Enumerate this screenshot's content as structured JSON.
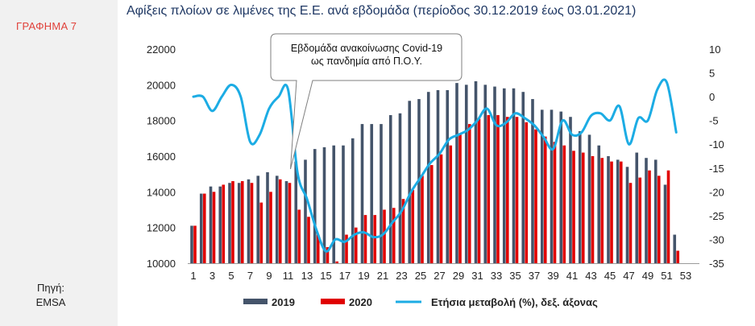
{
  "figure_label": "ΓΡΑΦΗΜΑ 7",
  "source": {
    "label": "Πηγή:",
    "value": "EMSA"
  },
  "chart_data": {
    "type": "bar",
    "title": "Αφίξεις πλοίων σε λιμένες της Ε.Ε. ανά εβδομάδα (περίοδος 30.12.2019 έως 03.01.2021)",
    "categories": [
      1,
      2,
      3,
      4,
      5,
      6,
      7,
      8,
      9,
      10,
      11,
      12,
      13,
      14,
      15,
      16,
      17,
      18,
      19,
      20,
      21,
      22,
      23,
      24,
      25,
      26,
      27,
      28,
      29,
      30,
      31,
      32,
      33,
      34,
      35,
      36,
      37,
      38,
      39,
      40,
      41,
      42,
      43,
      44,
      45,
      46,
      47,
      48,
      49,
      50,
      51,
      52,
      53
    ],
    "x_tick_labels": [
      "1",
      "3",
      "5",
      "7",
      "9",
      "11",
      "13",
      "15",
      "17",
      "19",
      "21",
      "23",
      "25",
      "27",
      "29",
      "31",
      "33",
      "35",
      "37",
      "39",
      "41",
      "43",
      "45",
      "47",
      "49",
      "51",
      "53"
    ],
    "series": [
      {
        "name": "2019",
        "type": "bar",
        "axis": "left",
        "color": "#44546a",
        "values": [
          12100,
          13900,
          14300,
          14300,
          14500,
          14500,
          14700,
          14900,
          15100,
          14900,
          14600,
          15700,
          15800,
          16400,
          16500,
          16600,
          16600,
          17000,
          17800,
          17800,
          17800,
          18300,
          18400,
          19100,
          19200,
          19600,
          19700,
          19700,
          20100,
          20000,
          20200,
          20000,
          19900,
          19800,
          19800,
          19600,
          19200,
          18600,
          18600,
          18500,
          18200,
          17400,
          17200,
          16600,
          16000,
          15800,
          15400,
          16200,
          15900,
          15800,
          14400,
          11600,
          null
        ]
      },
      {
        "name": "2020",
        "type": "bar",
        "axis": "left",
        "color": "#e00000",
        "values": [
          12100,
          13900,
          14000,
          14400,
          14600,
          14600,
          14500,
          13400,
          14000,
          14700,
          14500,
          13000,
          12600,
          11600,
          10900,
          10100,
          11600,
          12000,
          12700,
          12700,
          13000,
          13100,
          13600,
          14100,
          14900,
          15500,
          16100,
          16600,
          17200,
          17800,
          18100,
          18300,
          18300,
          18200,
          18200,
          17900,
          17500,
          17100,
          16800,
          16600,
          16300,
          16200,
          16000,
          15900,
          15700,
          15700,
          14500,
          14800,
          15200,
          14900,
          15200,
          10700,
          10000
        ]
      },
      {
        "name": "Ετήσια μεταβολή (%), δεξ. άξονας",
        "type": "line",
        "axis": "right",
        "color": "#1cace4",
        "values": [
          0.0,
          0.0,
          -3.0,
          0.0,
          2.5,
          0.0,
          -9.5,
          -8.0,
          -2.5,
          0.0,
          1.5,
          -16.0,
          -21.5,
          -28.0,
          -32.5,
          -30.0,
          -30.5,
          -29.0,
          -28.5,
          -29.5,
          -29.0,
          -26.5,
          -24.0,
          -20.0,
          -17.0,
          -14.0,
          -12.0,
          -9.0,
          -8.0,
          -7.0,
          -5.0,
          -2.5,
          -6.0,
          -5.5,
          -3.5,
          -4.5,
          -6.0,
          -8.5,
          -11.0,
          -5.0,
          -8.0,
          -7.5,
          -4.0,
          -3.5,
          -5.0,
          -2.0,
          -10.0,
          -4.5,
          -5.0,
          1.5,
          3.0,
          -7.5,
          null
        ]
      }
    ],
    "left_axis": {
      "ylim": [
        10000,
        22000
      ],
      "ticks": [
        10000,
        12000,
        14000,
        16000,
        18000,
        20000,
        22000
      ]
    },
    "right_axis": {
      "ylim": [
        -35,
        10
      ],
      "ticks": [
        -35,
        -30,
        -25,
        -20,
        -15,
        -10,
        -5,
        0,
        5,
        10
      ]
    },
    "annotation": {
      "line1": "Εβδομάδα ανακοίνωσης Covid-19",
      "line2": "ως πανδημία από Π.Ο.Υ.",
      "points_to_week": 11
    },
    "legend": {
      "position": "bottom",
      "entries": [
        {
          "label": "2019",
          "color": "#44546a",
          "shape": "bar"
        },
        {
          "label": "2020",
          "color": "#e00000",
          "shape": "bar"
        },
        {
          "label": "Ετήσια μεταβολή (%), δεξ. άξονας",
          "color": "#1cace4",
          "shape": "line"
        }
      ]
    },
    "grid": "none"
  }
}
